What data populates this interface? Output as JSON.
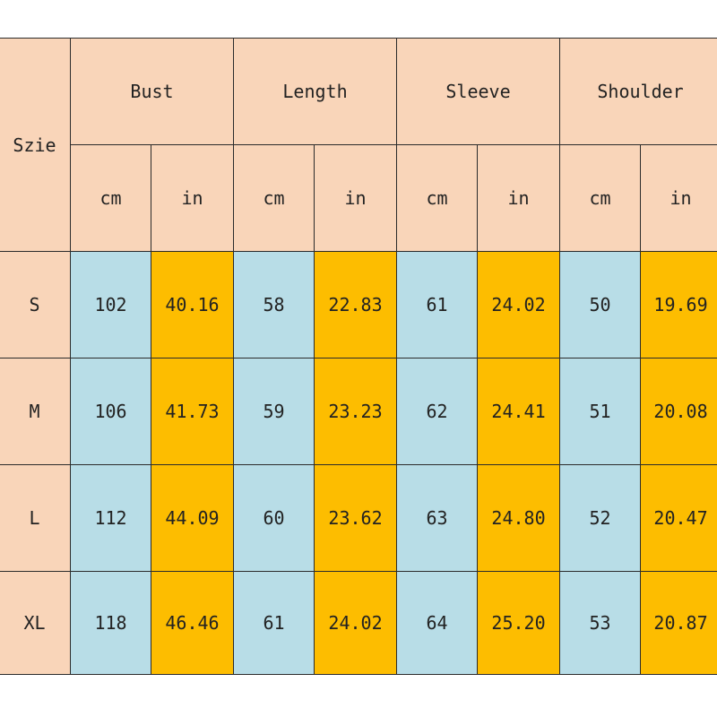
{
  "table": {
    "size_label": "Szie",
    "groups": [
      "Bust",
      "Length",
      "Sleeve",
      "Shoulder"
    ],
    "units": [
      "cm",
      "in",
      "cm",
      "in",
      "cm",
      "in",
      "cm",
      "in"
    ],
    "rows": [
      {
        "size": "S",
        "values": [
          "102",
          "40.16",
          "58",
          "22.83",
          "61",
          "24.02",
          "50",
          "19.69"
        ]
      },
      {
        "size": "M",
        "values": [
          "106",
          "41.73",
          "59",
          "23.23",
          "62",
          "24.41",
          "51",
          "20.08"
        ]
      },
      {
        "size": "L",
        "values": [
          "112",
          "44.09",
          "60",
          "23.62",
          "63",
          "24.80",
          "52",
          "20.47"
        ]
      },
      {
        "size": "XL",
        "values": [
          "118",
          "46.46",
          "61",
          "24.02",
          "64",
          "25.20",
          "53",
          "20.87"
        ]
      }
    ]
  },
  "colors": {
    "header_bg": "#f9d5b9",
    "cm_bg": "#b8dde7",
    "in_bg": "#fdbd00",
    "border": "#2b2b2b"
  }
}
